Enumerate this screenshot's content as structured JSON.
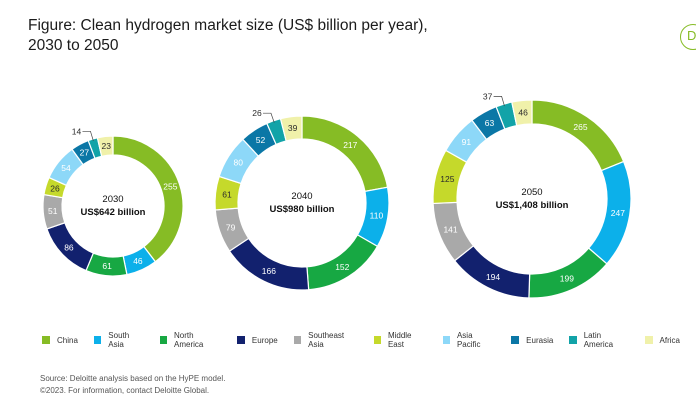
{
  "title": "Figure: Clean hydrogen market size (US$ billion per year),\n2030 to 2050",
  "corner_widget": "D",
  "source": {
    "line1": "Source: Deloitte analysis based on the HyPE model.",
    "line2": "©2023. For information, contact Deloitte Global."
  },
  "colors": {
    "China": "#86bc25",
    "South Asia": "#0cb0ea",
    "North America": "#17a843",
    "Europe": "#12216e",
    "Southeast Asia": "#a9a9a9",
    "Middle East": "#c5d92b",
    "Asia Pacific": "#8dd8f8",
    "Eurasia": "#0b77a6",
    "Latin America": "#12a3a8",
    "Africa": "#f0f1aa"
  },
  "chart_data": {
    "type": "donut",
    "categories": [
      "China",
      "South Asia",
      "North America",
      "Europe",
      "Southeast Asia",
      "Middle East",
      "Asia Pacific",
      "Eurasia",
      "Latin America",
      "Africa"
    ],
    "legend_position": "bottom",
    "series": [
      {
        "year": "2030",
        "total_label": "US$642 billion",
        "values": [
          255,
          46,
          61,
          86,
          51,
          26,
          54,
          27,
          14,
          23
        ]
      },
      {
        "year": "2040",
        "total_label": "US$980 billion",
        "values": [
          217,
          110,
          152,
          166,
          79,
          61,
          80,
          52,
          26,
          39
        ]
      },
      {
        "year": "2050",
        "total_label": "US$1,408 billion",
        "values": [
          265,
          247,
          199,
          194,
          141,
          125,
          91,
          63,
          37,
          46
        ]
      }
    ]
  }
}
